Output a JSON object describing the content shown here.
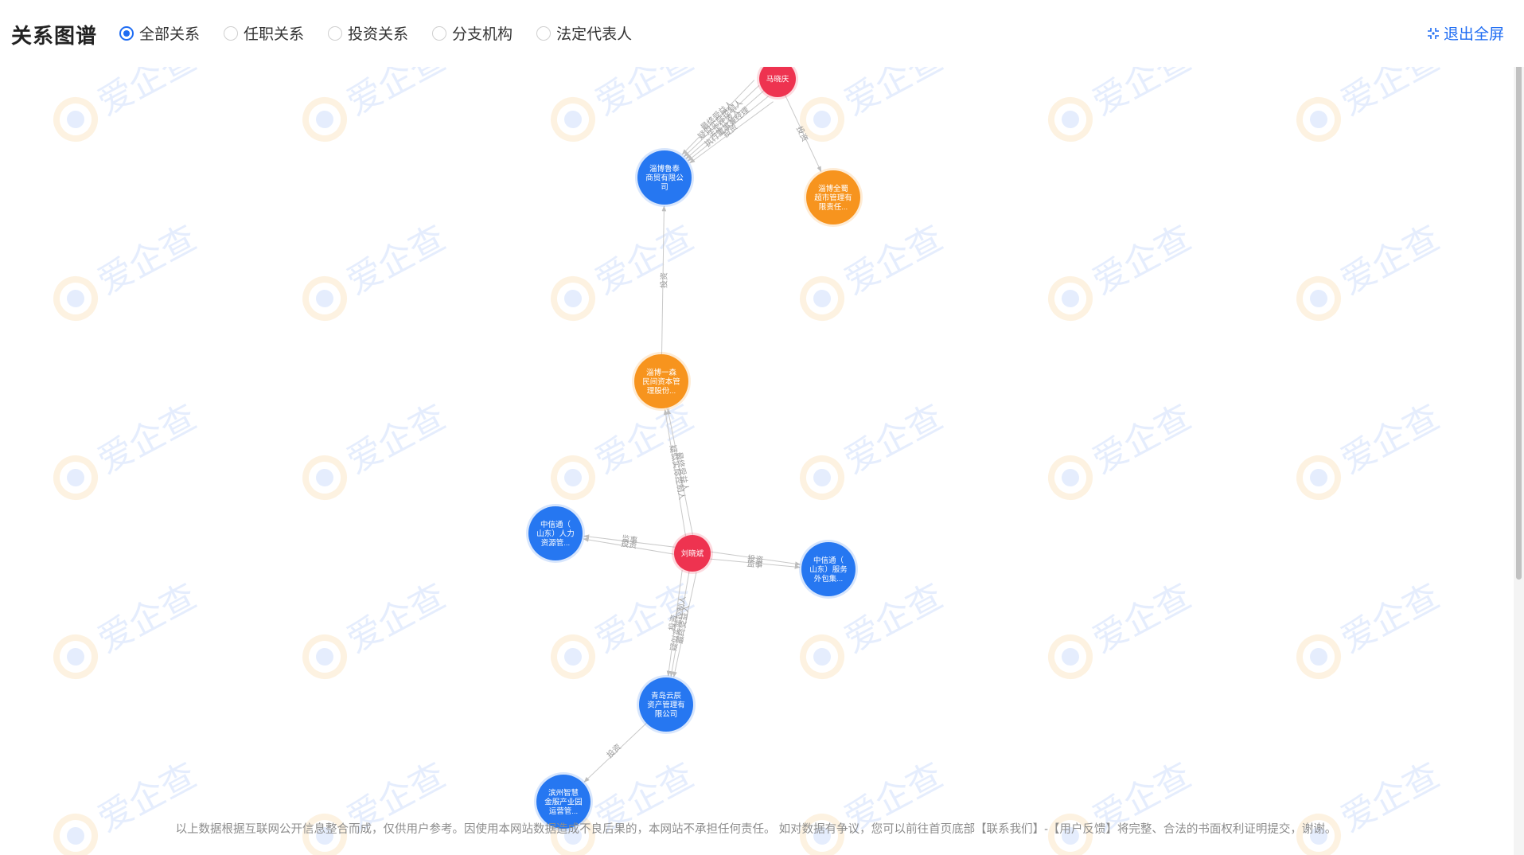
{
  "header": {
    "title": "关系图谱",
    "filters": [
      {
        "label": "全部关系",
        "selected": true
      },
      {
        "label": "任职关系",
        "selected": false
      },
      {
        "label": "投资关系",
        "selected": false
      },
      {
        "label": "分支机构",
        "selected": false
      },
      {
        "label": "法定代表人",
        "selected": false
      }
    ],
    "exit_fullscreen": "退出全屏"
  },
  "watermark_text": "爱企查",
  "graph": {
    "colors": {
      "person": "#ee3350",
      "company_blue": "#2677f1",
      "company_orange": "#f7941e",
      "edge": "#c9c9c9"
    },
    "nodes": [
      {
        "id": "p1",
        "type": "person",
        "lines": [
          "马晓庆"
        ]
      },
      {
        "id": "c1",
        "type": "company_blue",
        "lines": [
          "淄博鲁泰",
          "商贸有限公",
          "司"
        ]
      },
      {
        "id": "c2",
        "type": "company_orange",
        "lines": [
          "淄博全蜀",
          "超市管理有",
          "限责任..."
        ]
      },
      {
        "id": "c3",
        "type": "company_orange",
        "lines": [
          "淄博一森",
          "民间资本管",
          "理股份..."
        ]
      },
      {
        "id": "p2",
        "type": "person",
        "lines": [
          "刘晓斌"
        ]
      },
      {
        "id": "c4",
        "type": "company_blue",
        "lines": [
          "中信通（",
          "山东）人力",
          "资源管..."
        ]
      },
      {
        "id": "c5",
        "type": "company_blue",
        "lines": [
          "中信通（",
          "山东）服务",
          "外包集..."
        ]
      },
      {
        "id": "c6",
        "type": "company_blue",
        "lines": [
          "青岛云辰",
          "资产管理有",
          "限公司"
        ]
      },
      {
        "id": "c7",
        "type": "company_blue",
        "lines": [
          "滨州智慧",
          "金服产业园",
          "运营管..."
        ]
      }
    ],
    "edges": [
      {
        "from": "p1",
        "to": "c1",
        "labels": [
          "投资",
          "执行董事兼经理",
          "法定代表人",
          "疑似实际控制人",
          "最终受益人"
        ]
      },
      {
        "from": "p1",
        "to": "c2",
        "labels": [
          "投资"
        ]
      },
      {
        "from": "c3",
        "to": "c1",
        "labels": [
          "投资"
        ]
      },
      {
        "from": "p2",
        "to": "c3",
        "labels": [
          "疑似实际控制人",
          "最终受益人"
        ]
      },
      {
        "from": "p2",
        "to": "c4",
        "labels": [
          "投资",
          "监事"
        ]
      },
      {
        "from": "p2",
        "to": "c5",
        "labels": [
          "投资",
          "监事"
        ]
      },
      {
        "from": "p2",
        "to": "c6",
        "labels": [
          "最终受益人",
          "疑似实际控制人",
          "投资"
        ]
      },
      {
        "from": "c6",
        "to": "c7",
        "labels": [
          "投资"
        ]
      }
    ]
  },
  "disclaimer": "以上数据根据互联网公开信息整合而成，仅供用户参考。因使用本网站数据造成不良后果的，本网站不承担任何责任。 如对数据有争议，您可以前往首页底部【联系我们】-【用户反馈】将完整、合法的书面权利证明提交，谢谢。"
}
